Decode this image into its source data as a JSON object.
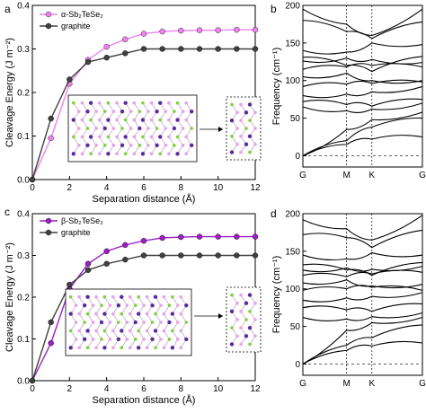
{
  "chart_data": [
    {
      "panel": "a",
      "type": "line",
      "xlabel": "Separation distance (Å)",
      "ylabel": "Cleavage Energy (J m⁻²)",
      "xlim": [
        0,
        12
      ],
      "ylim": [
        0,
        0.4
      ],
      "xticks": [
        "0",
        "2",
        "4",
        "6",
        "8",
        "10",
        "12"
      ],
      "yticks": [
        "0.0",
        "0.1",
        "0.2",
        "0.3",
        "0.4"
      ],
      "x": [
        0,
        1,
        2,
        3,
        4,
        5,
        6,
        7,
        8,
        9,
        10,
        11,
        12
      ],
      "series": [
        {
          "name": "α-Sb₂TeSe₂",
          "color": "#ee82ee",
          "values": [
            0,
            0.095,
            0.22,
            0.275,
            0.305,
            0.322,
            0.335,
            0.34,
            0.342,
            0.343,
            0.343,
            0.344,
            0.344
          ]
        },
        {
          "name": "graphite",
          "color": "#404040",
          "values": [
            0,
            0.14,
            0.23,
            0.27,
            0.28,
            0.29,
            0.3,
            0.3,
            0.3,
            0.3,
            0.3,
            0.3,
            0.3
          ]
        }
      ],
      "legend": "top-left"
    },
    {
      "panel": "c",
      "type": "line",
      "xlabel": "Separation distance (Å)",
      "ylabel": "Cleavage Energy (J m⁻²)",
      "xlim": [
        0,
        12
      ],
      "ylim": [
        0,
        0.4
      ],
      "xticks": [
        "0",
        "2",
        "4",
        "6",
        "8",
        "10",
        "12"
      ],
      "yticks": [
        "0.0",
        "0.1",
        "0.2",
        "0.3",
        "0.4"
      ],
      "x": [
        0,
        1,
        2,
        3,
        4,
        5,
        6,
        7,
        8,
        9,
        10,
        11,
        12
      ],
      "series": [
        {
          "name": "β-Sb₂TeSe₂",
          "color": "#9b1fc4",
          "values": [
            0,
            0.09,
            0.22,
            0.28,
            0.31,
            0.325,
            0.335,
            0.342,
            0.344,
            0.345,
            0.345,
            0.345,
            0.345
          ]
        },
        {
          "name": "graphite",
          "color": "#404040",
          "values": [
            0,
            0.14,
            0.23,
            0.265,
            0.28,
            0.29,
            0.3,
            0.3,
            0.3,
            0.3,
            0.3,
            0.3,
            0.3
          ]
        }
      ],
      "legend": "top-left"
    },
    {
      "panel": "b",
      "type": "line",
      "ylabel": "Frequency (cm⁻¹)",
      "ylim": [
        -15,
        200
      ],
      "yticks": [
        "0",
        "50",
        "100",
        "150",
        "200"
      ],
      "kpath": [
        "G",
        "M",
        "K",
        "G"
      ],
      "kpos": [
        0,
        1,
        1.5774,
        2.7321
      ],
      "zero_line": true,
      "bands": [
        [
          0,
          20,
          38,
          50
        ],
        [
          0,
          35,
          48,
          58
        ],
        [
          0,
          15,
          22,
          25
        ],
        [
          65,
          60,
          62,
          70
        ],
        [
          72,
          68,
          66,
          75
        ],
        [
          80,
          82,
          85,
          92
        ],
        [
          92,
          95,
          96,
          98
        ],
        [
          105,
          110,
          100,
          100
        ],
        [
          115,
          118,
          120,
          118
        ],
        [
          126,
          130,
          128,
          124
        ],
        [
          131,
          120,
          112,
          132
        ],
        [
          140,
          138,
          150,
          148
        ],
        [
          180,
          165,
          156,
          178
        ],
        [
          195,
          175,
          160,
          195
        ]
      ]
    },
    {
      "panel": "d",
      "type": "line",
      "ylabel": "Frequency (cm⁻¹)",
      "ylim": [
        -15,
        200
      ],
      "yticks": [
        "0",
        "50",
        "100",
        "150",
        "200"
      ],
      "kpath": [
        "G",
        "M",
        "K",
        "G"
      ],
      "kpos": [
        0,
        1,
        1.5774,
        2.7321
      ],
      "zero_line": true,
      "bands": [
        [
          0,
          25,
          35,
          52
        ],
        [
          0,
          45,
          55,
          62
        ],
        [
          0,
          18,
          24,
          28
        ],
        [
          62,
          60,
          63,
          68
        ],
        [
          75,
          72,
          70,
          80
        ],
        [
          85,
          88,
          90,
          95
        ],
        [
          98,
          100,
          102,
          98
        ],
        [
          108,
          112,
          104,
          106
        ],
        [
          118,
          116,
          120,
          122
        ],
        [
          125,
          128,
          126,
          130
        ],
        [
          132,
          125,
          118,
          135
        ],
        [
          145,
          140,
          148,
          145
        ],
        [
          172,
          168,
          155,
          178
        ],
        [
          192,
          180,
          165,
          198
        ]
      ]
    }
  ]
}
